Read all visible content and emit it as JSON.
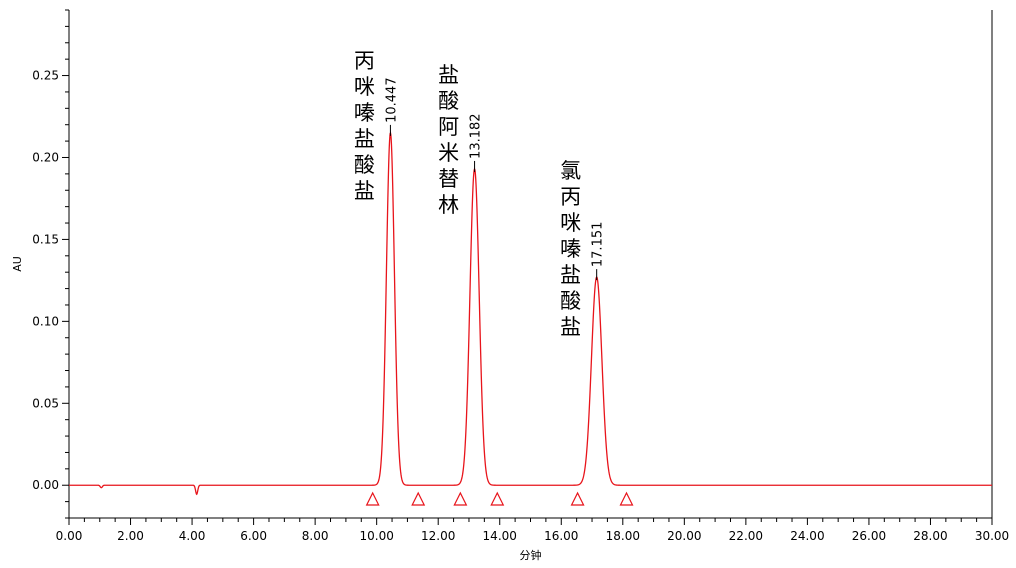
{
  "chart_data": {
    "type": "line",
    "xlabel": "分钟",
    "ylabel": "AU",
    "xlim": [
      0,
      30
    ],
    "ylim": [
      -0.02,
      0.29
    ],
    "xticks": [
      "0.00",
      "2.00",
      "4.00",
      "6.00",
      "8.00",
      "10.00",
      "12.00",
      "14.00",
      "16.00",
      "18.00",
      "20.00",
      "22.00",
      "24.00",
      "26.00",
      "28.00",
      "30.00"
    ],
    "yticks": [
      "0.00",
      "0.05",
      "0.10",
      "0.15",
      "0.20",
      "0.25"
    ],
    "grid": false,
    "line_color": "#e8141b",
    "marker_color": "#e8141b",
    "peaks": [
      {
        "name": "丙咪嗪盐酸盐",
        "rt": "10.447",
        "time": 10.447,
        "height": 0.215,
        "sigma": 0.13,
        "markers": [
          9.87,
          11.35
        ]
      },
      {
        "name": "盐酸阿米替林",
        "rt": "13.182",
        "time": 13.182,
        "height": 0.193,
        "sigma": 0.15,
        "markers": [
          12.72,
          13.92
        ]
      },
      {
        "name": "氯丙咪嗪盐酸盐",
        "rt": "17.151",
        "time": 17.151,
        "height": 0.127,
        "sigma": 0.17,
        "markers": [
          16.53,
          18.12
        ]
      }
    ],
    "baseline_dips": [
      {
        "time": 1.05,
        "depth": -0.0015
      },
      {
        "time": 4.15,
        "depth": -0.0055
      }
    ]
  }
}
